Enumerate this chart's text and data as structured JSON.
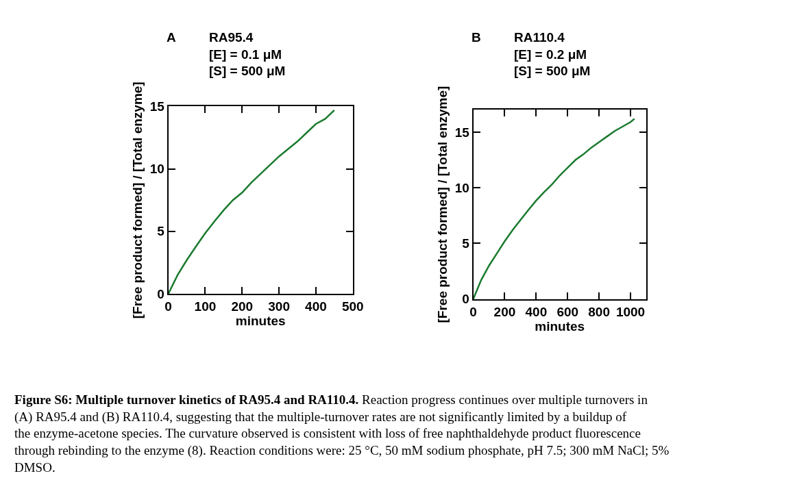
{
  "chart_data": [
    {
      "type": "line",
      "title": "A",
      "subtitle": "RA95.4\n[E] = 0.1 μM\n[S] = 500 μM",
      "xlabel": "minutes",
      "ylabel": "[Free product formed] / [Total enzyme]",
      "x": [
        0,
        25,
        50,
        75,
        100,
        125,
        150,
        175,
        200,
        225,
        250,
        275,
        300,
        325,
        350,
        375,
        400,
        425,
        450
      ],
      "series": [
        {
          "color": "#1a7a2e",
          "values": [
            0,
            1.5,
            2.7,
            3.8,
            4.85,
            5.8,
            6.7,
            7.5,
            8.1,
            8.9,
            9.6,
            10.3,
            11.0,
            11.6,
            12.2,
            12.9,
            13.6,
            14.0,
            14.7
          ]
        }
      ],
      "xlim": [
        0,
        500
      ],
      "xticks": [
        0,
        100,
        200,
        300,
        400,
        500
      ],
      "ylim": [
        0,
        15
      ],
      "yticks": [
        0,
        5,
        10,
        15
      ],
      "line_style": "solid",
      "annotations": [
        "Figure S6: Multiple turnover kinetics of RA95.4 and RA110.4.",
        "Reaction progress continues over multiple turnovers in (A) RA95.4 and (B) RA110.4, suggesting that the multiple-turnover rates are not significantly limited by a buildup of the enzyme-acetone species. The curvature observed is consistent with loss of free naphthaldehyde product fluorescence through rebinding to the enzyme (8). Reaction conditions were: 25 °C, 50 mM sodium phosphate, pH 7.5; 300 mM NaCl; 5% DMSO."
      ]
    },
    {
      "type": "line",
      "title": "B",
      "subtitle": "RA110.4\n[E] = 0.2 μM\n[S] = 500 μM",
      "xlabel": "minutes",
      "ylabel": "[Free product formed] / [Total enzyme]",
      "x": [
        0,
        50,
        100,
        150,
        200,
        250,
        300,
        350,
        400,
        450,
        500,
        550,
        600,
        650,
        700,
        750,
        800,
        850,
        900,
        950,
        1000,
        1025
      ],
      "series": [
        {
          "color": "#1a7a2e",
          "values": [
            0,
            1.7,
            3.0,
            4.1,
            5.2,
            6.2,
            7.1,
            8.0,
            8.85,
            9.6,
            10.3,
            11.1,
            11.8,
            12.5,
            13.0,
            13.6,
            14.1,
            14.6,
            15.1,
            15.5,
            15.9,
            16.2
          ]
        }
      ],
      "xlim": [
        0,
        1100
      ],
      "xticks": [
        0,
        200,
        400,
        600,
        800,
        1000
      ],
      "ylim": [
        0,
        17
      ],
      "yticks": [
        0,
        5,
        10,
        15
      ],
      "line_style": "solid"
    }
  ]
}
